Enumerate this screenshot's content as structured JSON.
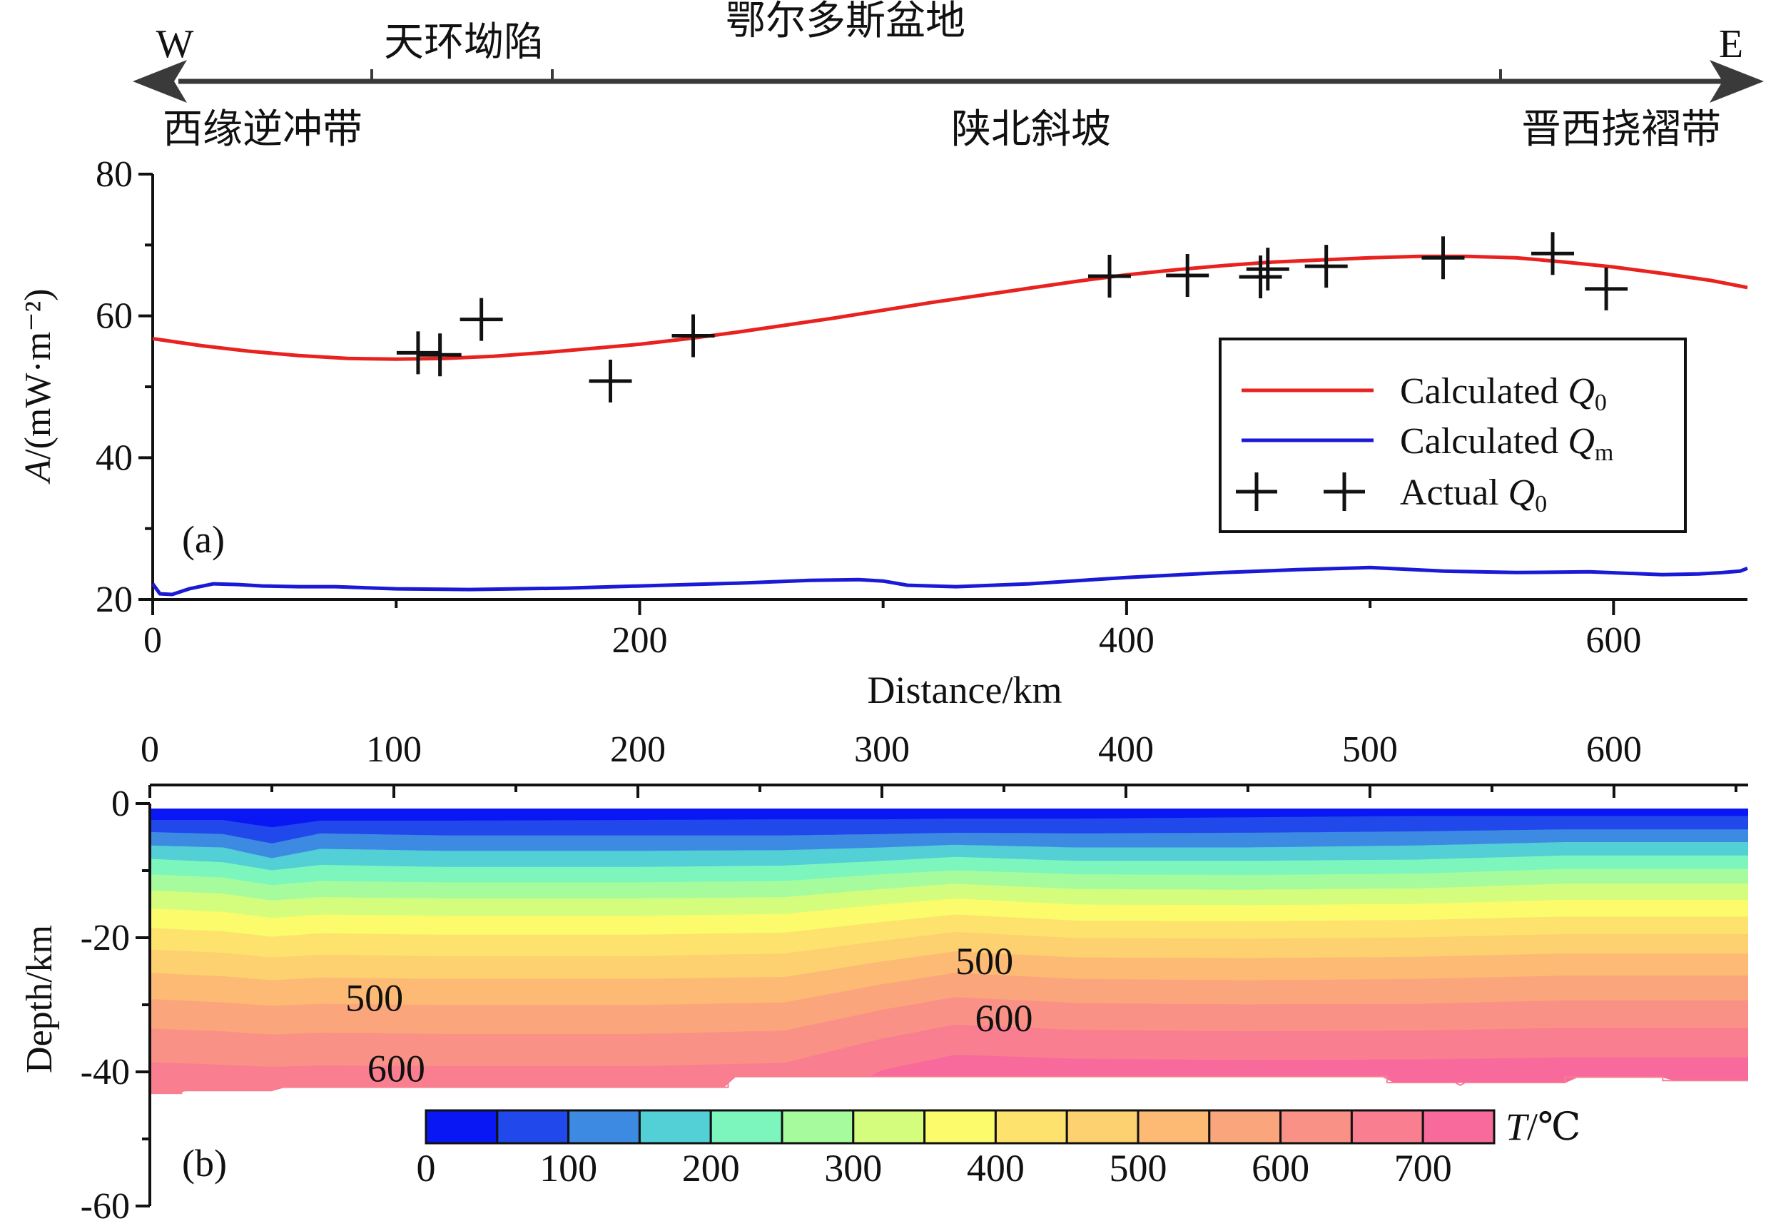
{
  "header": {
    "basin": "鄂尔多斯盆地",
    "west": "W",
    "east": "E",
    "sub_units": [
      "天环坳陷"
    ],
    "zones": [
      "西缘逆冲带",
      "陕北斜坡",
      "晋西挠褶带"
    ]
  },
  "chart_data": [
    {
      "id": "a",
      "type": "line",
      "panel_label": "(a)",
      "xlabel": "Distance/km",
      "ylabel_italic": "A",
      "ylabel": "/(mW·m⁻²)",
      "xlim": [
        0,
        655
      ],
      "ylim": [
        20,
        80
      ],
      "xticks": [
        0,
        200,
        400,
        600
      ],
      "yticks": [
        20,
        40,
        60,
        80
      ],
      "grid": false,
      "legend_position": "right",
      "series": [
        {
          "name": "Calculated Q0",
          "legend_text": "Calculated ",
          "legend_italic": "Q",
          "legend_sub": "0",
          "kind": "line",
          "color": "#e8221f",
          "x": [
            0,
            20,
            40,
            60,
            80,
            100,
            120,
            140,
            160,
            180,
            200,
            220,
            240,
            260,
            280,
            300,
            320,
            340,
            360,
            380,
            400,
            420,
            440,
            460,
            480,
            500,
            520,
            540,
            560,
            580,
            600,
            620,
            640,
            655
          ],
          "y": [
            56.8,
            55.8,
            55.0,
            54.4,
            54.0,
            53.9,
            54.0,
            54.3,
            54.8,
            55.4,
            56.0,
            56.8,
            57.7,
            58.7,
            59.7,
            60.8,
            61.9,
            62.9,
            63.9,
            64.9,
            65.8,
            66.5,
            67.1,
            67.6,
            67.9,
            68.2,
            68.4,
            68.4,
            68.2,
            67.6,
            66.9,
            66.0,
            65.0,
            64.0
          ]
        },
        {
          "name": "Calculated Qm",
          "legend_text": "Calculated ",
          "legend_italic": "Q",
          "legend_sub": "m",
          "kind": "line",
          "color": "#1a1ad6",
          "x": [
            0,
            3,
            8,
            15,
            25,
            35,
            45,
            60,
            75,
            100,
            130,
            170,
            210,
            240,
            270,
            290,
            300,
            310,
            330,
            360,
            400,
            440,
            470,
            500,
            530,
            560,
            590,
            620,
            635,
            645,
            652,
            655
          ],
          "y": [
            22.2,
            20.8,
            20.7,
            21.5,
            22.2,
            22.1,
            21.9,
            21.8,
            21.8,
            21.5,
            21.4,
            21.6,
            22.0,
            22.3,
            22.7,
            22.8,
            22.6,
            22.0,
            21.8,
            22.2,
            23.1,
            23.8,
            24.2,
            24.5,
            24.0,
            23.8,
            23.9,
            23.5,
            23.6,
            23.8,
            24.0,
            24.4
          ]
        },
        {
          "name": "Actual Q0",
          "legend_text": "Actual ",
          "legend_italic": "Q",
          "legend_sub": "0",
          "kind": "scatter",
          "marker": "+",
          "color": "#111111",
          "x": [
            109,
            118,
            135,
            188,
            222,
            393,
            425,
            455,
            458,
            482,
            530,
            575,
            597
          ],
          "y": [
            54.8,
            54.5,
            59.5,
            50.8,
            57.2,
            65.6,
            65.7,
            65.5,
            66.6,
            67.0,
            68.2,
            68.8,
            63.8
          ]
        }
      ]
    },
    {
      "id": "b",
      "type": "heatmap",
      "panel_label": "(b)",
      "ylabel": "Depth/km",
      "xlim": [
        0,
        655
      ],
      "ylim": [
        -60,
        0
      ],
      "xticks": [
        0,
        100,
        200,
        300,
        400,
        500,
        600
      ],
      "yticks": [
        0,
        -20,
        -40,
        -60
      ],
      "xaxis_position": "top",
      "grid": false,
      "colorbar": {
        "title_italic": "T",
        "title": "/℃",
        "ticks": [
          0,
          100,
          200,
          300,
          400,
          500,
          600,
          700
        ],
        "step": 50,
        "min": 0,
        "max": 750,
        "colors": [
          "#0a17f5",
          "#2048ea",
          "#3d8ae3",
          "#53cfd6",
          "#7cf6bd",
          "#a6fc9c",
          "#d4fd7e",
          "#fbfb6b",
          "#fde36e",
          "#fdd070",
          "#fcba74",
          "#fba57c",
          "#fa9186",
          "#f97f90",
          "#f86a9c"
        ]
      },
      "contour_labels": [
        {
          "text": "500",
          "x": 92,
          "depth": -29
        },
        {
          "text": "600",
          "x": 101,
          "depth": -39.5
        },
        {
          "text": "500",
          "x": 342,
          "depth": -23.5
        },
        {
          "text": "600",
          "x": 350,
          "depth": -32
        }
      ],
      "moho_depth": {
        "x": [
          0,
          13,
          13,
          50,
          50,
          237,
          237,
          507,
          507,
          535,
          537,
          539,
          580,
          580,
          620,
          620,
          655
        ],
        "depth": [
          -43.2,
          -43.2,
          -42.8,
          -42.8,
          -42.3,
          -42.3,
          -40.7,
          -40.7,
          -41.6,
          -41.6,
          -42.0,
          -41.6,
          -41.6,
          -40.8,
          -40.8,
          -41.3,
          -41.3
        ]
      },
      "isotherm_depths": {
        "x": [
          0,
          30,
          50,
          70,
          120,
          200,
          260,
          300,
          330,
          380,
          450,
          520,
          580,
          655
        ],
        "levels": [
          {
            "t": 50,
            "depth": [
              -2.5,
              -2.5,
              -3.6,
              -2.6,
              -2.6,
              -2.5,
              -2.4,
              -2.4,
              -2.3,
              -2.3,
              -2.1,
              -1.9,
              -1.9,
              -1.9
            ]
          },
          {
            "t": 100,
            "depth": [
              -4.3,
              -4.6,
              -6.0,
              -4.5,
              -4.8,
              -4.8,
              -4.8,
              -4.6,
              -4.4,
              -4.5,
              -4.4,
              -4.2,
              -3.9,
              -3.9
            ]
          },
          {
            "t": 150,
            "depth": [
              -6.3,
              -6.6,
              -8.2,
              -6.8,
              -7.1,
              -7.1,
              -7.0,
              -6.6,
              -6.2,
              -6.6,
              -6.6,
              -6.3,
              -5.8,
              -5.8
            ]
          },
          {
            "t": 200,
            "depth": [
              -8.3,
              -8.8,
              -10.0,
              -9.2,
              -9.5,
              -9.5,
              -9.3,
              -8.6,
              -8.0,
              -8.6,
              -8.6,
              -8.4,
              -7.8,
              -7.8
            ]
          },
          {
            "t": 250,
            "depth": [
              -10.6,
              -11.1,
              -12.2,
              -11.6,
              -11.8,
              -11.8,
              -11.6,
              -10.6,
              -10.0,
              -10.6,
              -10.7,
              -10.5,
              -9.8,
              -9.8
            ]
          },
          {
            "t": 300,
            "depth": [
              -13.0,
              -13.5,
              -14.5,
              -14.0,
              -14.2,
              -14.2,
              -14.0,
              -12.8,
              -12.0,
              -12.8,
              -12.9,
              -12.7,
              -12.0,
              -12.0
            ]
          },
          {
            "t": 350,
            "depth": [
              -15.7,
              -16.2,
              -17.1,
              -16.6,
              -16.8,
              -16.8,
              -16.5,
              -15.1,
              -14.2,
              -15.1,
              -15.2,
              -15.0,
              -14.4,
              -14.4
            ]
          },
          {
            "t": 400,
            "depth": [
              -18.6,
              -19.1,
              -19.9,
              -19.4,
              -19.6,
              -19.6,
              -19.3,
              -17.7,
              -16.6,
              -17.5,
              -17.6,
              -17.4,
              -16.9,
              -16.9
            ]
          },
          {
            "t": 450,
            "depth": [
              -21.8,
              -22.3,
              -23.0,
              -22.6,
              -22.8,
              -22.8,
              -22.4,
              -20.5,
              -19.2,
              -20.1,
              -20.2,
              -20.0,
              -19.5,
              -19.5
            ]
          },
          {
            "t": 500,
            "depth": [
              -25.3,
              -25.8,
              -26.4,
              -26.0,
              -26.2,
              -26.2,
              -25.9,
              -23.6,
              -22.1,
              -23.0,
              -23.1,
              -22.9,
              -22.4,
              -22.4
            ]
          },
          {
            "t": 550,
            "depth": [
              -29.2,
              -29.7,
              -30.2,
              -29.9,
              -30.1,
              -30.1,
              -29.7,
              -27.0,
              -25.3,
              -26.2,
              -26.4,
              -26.2,
              -25.7,
              -25.7
            ]
          },
          {
            "t": 600,
            "depth": [
              -33.6,
              -34.0,
              -34.5,
              -34.2,
              -34.4,
              -34.4,
              -33.9,
              -30.8,
              -28.9,
              -29.8,
              -30.0,
              -29.9,
              -29.4,
              -29.4
            ]
          },
          {
            "t": 650,
            "depth": [
              -38.6,
              -39.0,
              -39.3,
              -39.1,
              -39.2,
              -39.2,
              -38.7,
              -35.1,
              -33.0,
              -33.8,
              -34.0,
              -33.9,
              -33.5,
              -33.5
            ]
          },
          {
            "t": 700,
            "depth": [
              -60,
              -60,
              -60,
              -60,
              -60,
              -60,
              -60,
              -39.8,
              -37.5,
              -38.1,
              -38.3,
              -38.2,
              -37.9,
              -37.9
            ]
          }
        ]
      }
    }
  ]
}
